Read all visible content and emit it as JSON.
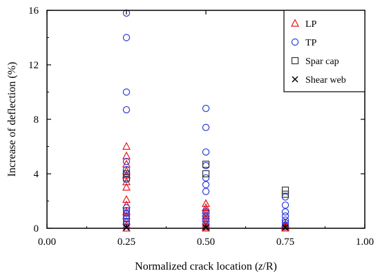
{
  "chart_data": {
    "type": "scatter",
    "xlabel_parts": [
      "Normalized crack location (",
      "z",
      "/R)"
    ],
    "ylabel": "Increase of deflection (%)",
    "xlim": [
      0,
      1
    ],
    "ylim": [
      0,
      16
    ],
    "xticks": [
      "0.00",
      "0.25",
      "0.50",
      "0.75",
      "1.00"
    ],
    "xtick_values": [
      0,
      0.25,
      0.5,
      0.75,
      1.0
    ],
    "yticks": [
      "0",
      "4",
      "8",
      "12",
      "16"
    ],
    "ytick_values": [
      0,
      4,
      8,
      12,
      16
    ],
    "grid": false,
    "legend_position": "top-right",
    "series": [
      {
        "name": "LP",
        "marker": "triangle",
        "color": "#e8141e",
        "points": [
          [
            0.25,
            6.0
          ],
          [
            0.25,
            5.3
          ],
          [
            0.25,
            4.7
          ],
          [
            0.25,
            4.2
          ],
          [
            0.25,
            3.9
          ],
          [
            0.25,
            3.4
          ],
          [
            0.25,
            3.0
          ],
          [
            0.25,
            2.1
          ],
          [
            0.25,
            1.7
          ],
          [
            0.25,
            1.2
          ],
          [
            0.25,
            0.9
          ],
          [
            0.25,
            0.5
          ],
          [
            0.25,
            0.2
          ],
          [
            0.25,
            0.0
          ],
          [
            0.5,
            1.8
          ],
          [
            0.5,
            1.5
          ],
          [
            0.5,
            1.3
          ],
          [
            0.5,
            1.1
          ],
          [
            0.5,
            0.9
          ],
          [
            0.5,
            0.7
          ],
          [
            0.5,
            0.5
          ],
          [
            0.5,
            0.3
          ],
          [
            0.5,
            0.1
          ],
          [
            0.5,
            0.0
          ],
          [
            0.75,
            0.3
          ],
          [
            0.75,
            0.2
          ],
          [
            0.75,
            0.1
          ],
          [
            0.75,
            0.0
          ]
        ]
      },
      {
        "name": "TP",
        "marker": "circle",
        "color": "#2a3ad8",
        "points": [
          [
            0.25,
            15.8
          ],
          [
            0.25,
            14.0
          ],
          [
            0.25,
            10.0
          ],
          [
            0.25,
            8.7
          ],
          [
            0.25,
            4.9
          ],
          [
            0.25,
            4.3
          ],
          [
            0.25,
            3.6
          ],
          [
            0.25,
            1.5
          ],
          [
            0.25,
            1.3
          ],
          [
            0.25,
            1.1
          ],
          [
            0.25,
            0.9
          ],
          [
            0.25,
            0.7
          ],
          [
            0.25,
            0.5
          ],
          [
            0.25,
            0.3
          ],
          [
            0.5,
            8.8
          ],
          [
            0.5,
            7.4
          ],
          [
            0.5,
            5.6
          ],
          [
            0.5,
            4.6
          ],
          [
            0.5,
            3.7
          ],
          [
            0.5,
            3.2
          ],
          [
            0.5,
            2.7
          ],
          [
            0.5,
            1.2
          ],
          [
            0.5,
            0.9
          ],
          [
            0.5,
            0.6
          ],
          [
            0.5,
            0.3
          ],
          [
            0.75,
            2.3
          ],
          [
            0.75,
            1.7
          ],
          [
            0.75,
            1.2
          ],
          [
            0.75,
            0.9
          ],
          [
            0.75,
            0.6
          ],
          [
            0.75,
            0.4
          ],
          [
            0.75,
            0.2
          ]
        ]
      },
      {
        "name": "Spar cap",
        "marker": "square",
        "color": "#333333",
        "points": [
          [
            0.25,
            4.0
          ],
          [
            0.25,
            3.7
          ],
          [
            0.5,
            4.7
          ],
          [
            0.5,
            4.0
          ],
          [
            0.75,
            2.8
          ],
          [
            0.75,
            2.5
          ]
        ]
      },
      {
        "name": "Shear web",
        "marker": "x",
        "color": "#000000",
        "points": [
          [
            0.25,
            0.05
          ],
          [
            0.5,
            0.05
          ],
          [
            0.75,
            0.05
          ]
        ]
      }
    ]
  }
}
